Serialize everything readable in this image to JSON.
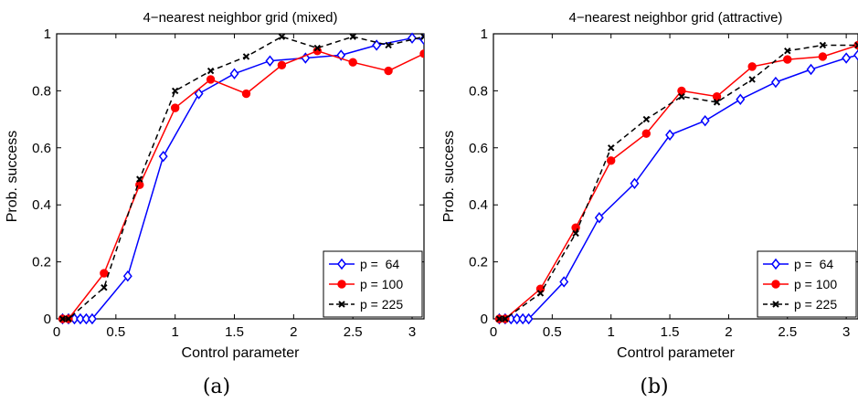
{
  "figure": {
    "captions": [
      "(a)",
      "(b)"
    ]
  },
  "chart_data": [
    {
      "type": "line",
      "title": "4−nearest neighbor grid (mixed)",
      "xlabel": "Control parameter",
      "ylabel": "Prob. success",
      "xlim": [
        0,
        3.1
      ],
      "ylim": [
        0,
        1
      ],
      "xticks": [
        0,
        0.5,
        1,
        1.5,
        2,
        2.5,
        3
      ],
      "xtick_labels": [
        "0",
        "0.5",
        "1",
        "1.5",
        "2",
        "2.5",
        "3"
      ],
      "yticks": [
        0,
        0.2,
        0.4,
        0.6,
        0.8,
        1
      ],
      "ytick_labels": [
        "0",
        "0.2",
        "0.4",
        "0.6",
        "0.8",
        "1"
      ],
      "grid": false,
      "legend_position": "bottom-right",
      "series": [
        {
          "name": "p =  64",
          "color": "#0000ff",
          "marker": "diamond",
          "line_style": "solid",
          "x": [
            0.05,
            0.1,
            0.15,
            0.2,
            0.25,
            0.3,
            0.6,
            0.9,
            1.2,
            1.5,
            1.8,
            2.1,
            2.4,
            2.7,
            3.0,
            3.1
          ],
          "y": [
            0,
            0,
            0,
            0,
            0,
            0,
            0.15,
            0.57,
            0.79,
            0.86,
            0.905,
            0.915,
            0.925,
            0.96,
            0.985,
            0.98
          ]
        },
        {
          "name": "p = 100",
          "color": "#ff0000",
          "marker": "circle",
          "line_style": "solid",
          "x": [
            0.05,
            0.1,
            0.4,
            0.7,
            1.0,
            1.3,
            1.6,
            1.9,
            2.2,
            2.5,
            2.8,
            3.1
          ],
          "y": [
            0,
            0,
            0.16,
            0.47,
            0.74,
            0.84,
            0.79,
            0.89,
            0.94,
            0.9,
            0.87,
            0.93
          ]
        },
        {
          "name": "p = 225",
          "color": "#000000",
          "marker": "x",
          "line_style": "dashed",
          "x": [
            0.05,
            0.1,
            0.4,
            0.7,
            1.0,
            1.3,
            1.6,
            1.9,
            2.2,
            2.5,
            2.8,
            3.1
          ],
          "y": [
            0,
            0,
            0.11,
            0.49,
            0.8,
            0.87,
            0.92,
            0.99,
            0.95,
            0.99,
            0.96,
            0.99
          ]
        }
      ]
    },
    {
      "type": "line",
      "title": "4−nearest neighbor grid (attractive)",
      "xlabel": "Control parameter",
      "ylabel": "Prob. success",
      "xlim": [
        0,
        3.1
      ],
      "ylim": [
        0,
        1
      ],
      "xticks": [
        0,
        0.5,
        1,
        1.5,
        2,
        2.5,
        3
      ],
      "xtick_labels": [
        "0",
        "0.5",
        "1",
        "1.5",
        "2",
        "2.5",
        "3"
      ],
      "yticks": [
        0,
        0.2,
        0.4,
        0.6,
        0.8,
        1
      ],
      "ytick_labels": [
        "0",
        "0.2",
        "0.4",
        "0.6",
        "0.8",
        "1"
      ],
      "grid": false,
      "legend_position": "bottom-right",
      "series": [
        {
          "name": "p =  64",
          "color": "#0000ff",
          "marker": "diamond",
          "line_style": "solid",
          "x": [
            0.05,
            0.1,
            0.15,
            0.2,
            0.25,
            0.3,
            0.6,
            0.9,
            1.2,
            1.5,
            1.8,
            2.1,
            2.4,
            2.7,
            3.0,
            3.1
          ],
          "y": [
            0,
            0,
            0,
            0,
            0,
            0,
            0.13,
            0.355,
            0.475,
            0.645,
            0.695,
            0.77,
            0.83,
            0.875,
            0.915,
            0.925
          ]
        },
        {
          "name": "p = 100",
          "color": "#ff0000",
          "marker": "circle",
          "line_style": "solid",
          "x": [
            0.05,
            0.1,
            0.4,
            0.7,
            1.0,
            1.3,
            1.6,
            1.9,
            2.2,
            2.5,
            2.8,
            3.1
          ],
          "y": [
            0,
            0,
            0.105,
            0.32,
            0.555,
            0.65,
            0.8,
            0.78,
            0.885,
            0.91,
            0.92,
            0.96
          ]
        },
        {
          "name": "p = 225",
          "color": "#000000",
          "marker": "x",
          "line_style": "dashed",
          "x": [
            0.05,
            0.1,
            0.4,
            0.7,
            1.0,
            1.3,
            1.6,
            1.9,
            2.2,
            2.5,
            2.8,
            3.1
          ],
          "y": [
            0,
            0,
            0.09,
            0.3,
            0.6,
            0.7,
            0.78,
            0.76,
            0.84,
            0.94,
            0.96,
            0.96
          ]
        }
      ]
    }
  ]
}
